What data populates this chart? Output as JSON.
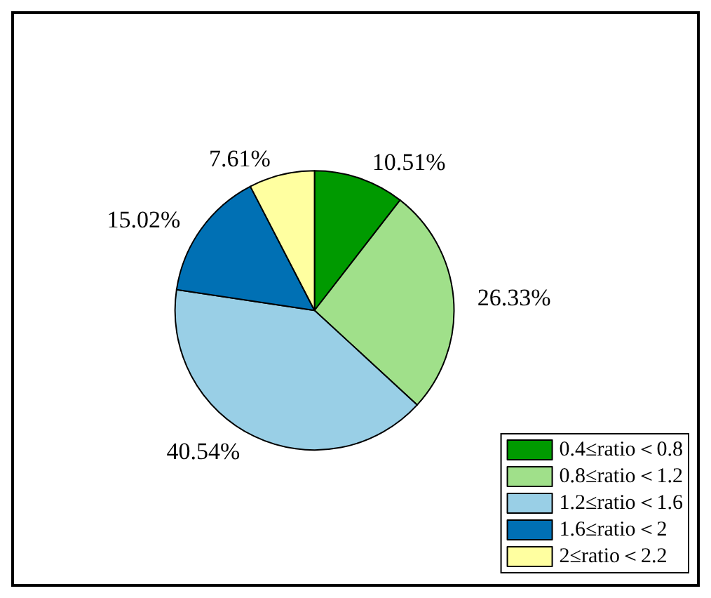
{
  "chart_data": {
    "type": "pie",
    "categories": [
      "0.4≤ratio＜0.8",
      "0.8≤ratio＜1.2",
      "1.2≤ratio＜1.6",
      "1.6≤ratio＜2",
      "2≤ratio＜2.2"
    ],
    "values": [
      10.51,
      26.33,
      40.54,
      15.02,
      7.61
    ],
    "colors": [
      "#009a00",
      "#a0e08a",
      "#99cfe6",
      "#0070b4",
      "#ffffa0"
    ],
    "value_labels": [
      "10.51%",
      "26.33%",
      "40.54%",
      "15.02%",
      "7.61%"
    ],
    "legend": "bottom right"
  }
}
